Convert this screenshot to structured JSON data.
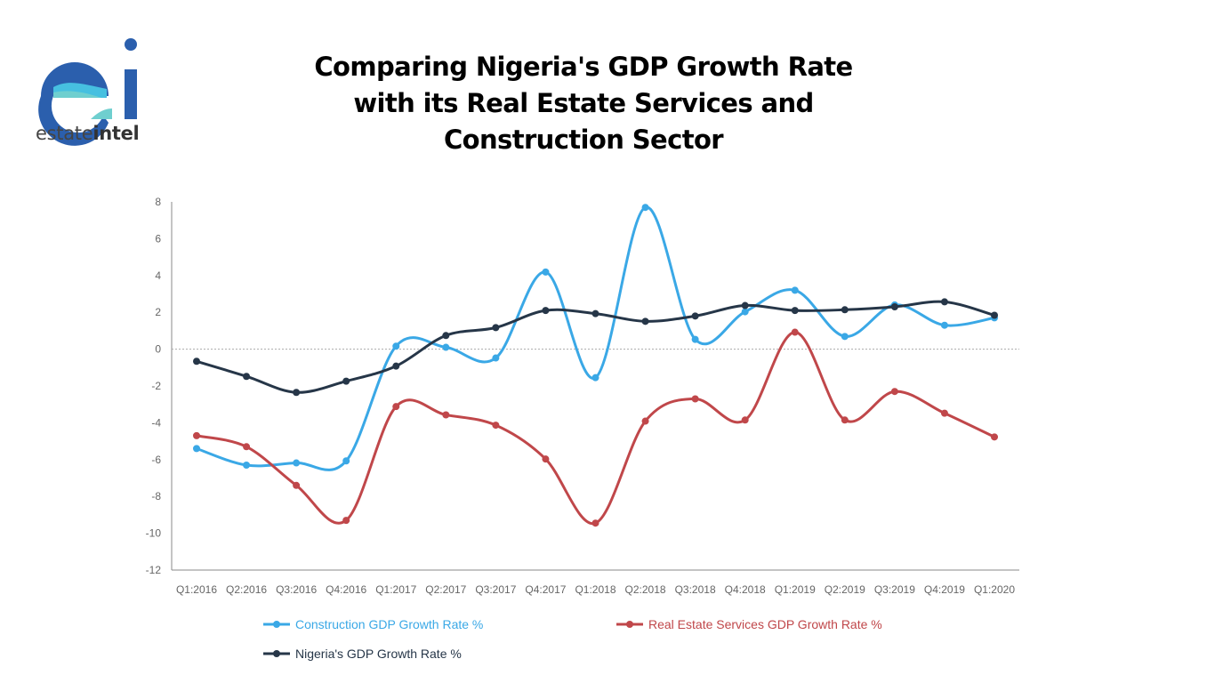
{
  "logo": {
    "text_regular": "estate",
    "text_bold": "intel",
    "colors": {
      "dark": "#2b5fad",
      "light": "#46c0e0",
      "teal": "#6fcfcf"
    }
  },
  "title_lines": [
    "Comparing Nigeria's GDP Growth Rate",
    "with its Real Estate Services and",
    "Construction Sector"
  ],
  "chart_data": {
    "type": "line",
    "title": "Comparing Nigeria's GDP Growth Rate with its Real Estate Services and Construction Sector",
    "xlabel": "",
    "ylabel": "",
    "categories": [
      "Q1:2016",
      "Q2:2016",
      "Q3:2016",
      "Q4:2016",
      "Q1:2017",
      "Q2:2017",
      "Q3:2017",
      "Q4:2017",
      "Q1:2018",
      "Q2:2018",
      "Q3:2018",
      "Q4:2018",
      "Q1:2019",
      "Q2:2019",
      "Q3:2019",
      "Q4:2019",
      "Q1:2020"
    ],
    "ylim": [
      -12,
      8
    ],
    "yticks": [
      8,
      6,
      4,
      2,
      0,
      -2,
      -4,
      -6,
      -8,
      -10,
      -12
    ],
    "zero_line": "dotted",
    "smooth": true,
    "legend_position": "bottom",
    "series": [
      {
        "name": "Construction GDP Growth Rate %",
        "color": "#3aa8e6",
        "values": [
          -5.4,
          -6.3,
          -6.18,
          -6.07,
          0.16,
          0.1,
          -0.48,
          4.19,
          -1.55,
          7.7,
          0.53,
          2.03,
          3.2,
          0.69,
          2.4,
          1.3,
          1.7
        ]
      },
      {
        "name": "Real Estate Services GDP Growth Rate %",
        "color": "#c0474a",
        "values": [
          -4.7,
          -5.3,
          -7.4,
          -9.3,
          -3.12,
          -3.57,
          -4.13,
          -5.97,
          -9.45,
          -3.91,
          -2.7,
          -3.85,
          0.92,
          -3.85,
          -2.3,
          -3.48,
          -4.77
        ]
      },
      {
        "name": "Nigeria's GDP Growth Rate %",
        "color": "#263648",
        "values": [
          -0.66,
          -1.48,
          -2.35,
          -1.74,
          -0.92,
          0.74,
          1.17,
          2.1,
          1.93,
          1.51,
          1.8,
          2.37,
          2.1,
          2.14,
          2.3,
          2.57,
          1.84
        ]
      }
    ]
  }
}
